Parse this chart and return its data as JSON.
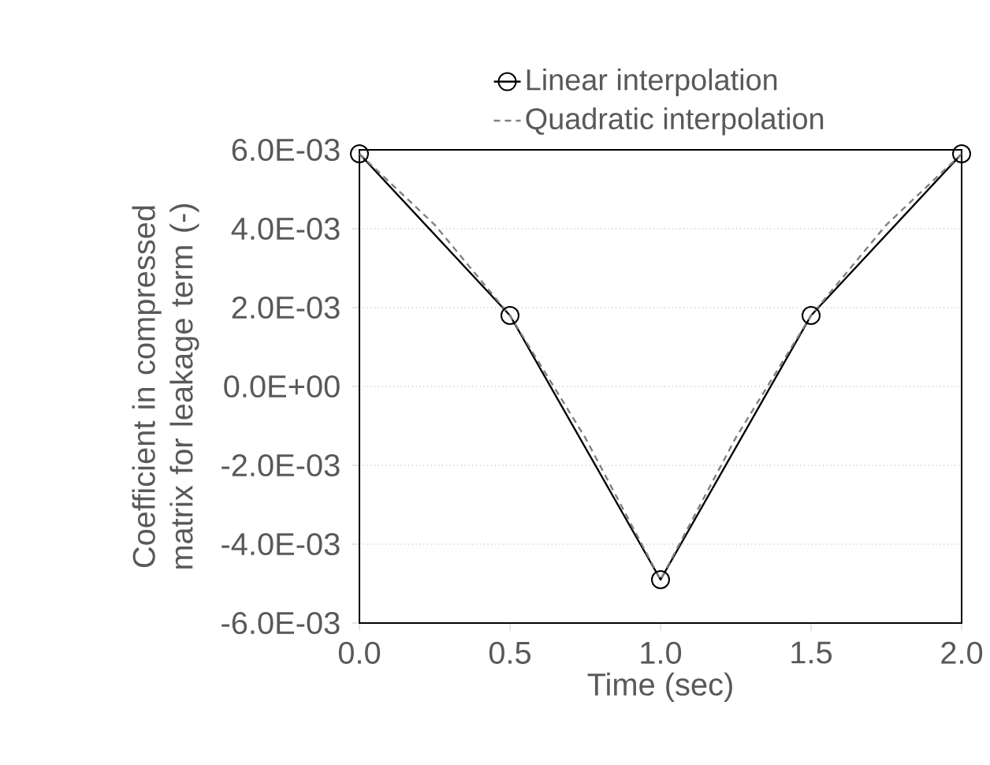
{
  "chart_data": {
    "type": "line",
    "xlabel": "Time (sec)",
    "ylabel": "Coefficient in compressed matrix for leakage term (-)",
    "xlim": [
      0,
      2
    ],
    "ylim": [
      -0.006,
      0.006
    ],
    "xticks": [
      {
        "value": 0,
        "label": "0.0"
      },
      {
        "value": 0.5,
        "label": "0.5"
      },
      {
        "value": 1,
        "label": "1.0"
      },
      {
        "value": 1.5,
        "label": "1.5"
      },
      {
        "value": 2,
        "label": "2.0"
      }
    ],
    "yticks": [
      {
        "value": -0.006,
        "label": "-6.0E-03"
      },
      {
        "value": -0.004,
        "label": "-4.0E-03"
      },
      {
        "value": -0.002,
        "label": "-2.0E-03"
      },
      {
        "value": 0,
        "label": "0.0E+00"
      },
      {
        "value": 0.002,
        "label": "2.0E-03"
      },
      {
        "value": 0.004,
        "label": "4.0E-03"
      },
      {
        "value": 0.006,
        "label": "6.0E-03"
      }
    ],
    "grid": "y",
    "legend": "top",
    "series": [
      {
        "name": "Linear interpolation",
        "color": "#000000",
        "marker": "circle",
        "line_style": "solid",
        "x": [
          0,
          0.5,
          1,
          1.5,
          2
        ],
        "values": [
          0.0059,
          0.0018,
          -0.0049,
          0.0018,
          0.0059
        ]
      },
      {
        "name": "Quadratic interpolation",
        "color": "#808080",
        "marker": "none",
        "line_style": "dashed",
        "x": [
          0,
          0.25,
          0.5,
          0.75,
          1,
          1.25,
          1.5,
          1.75,
          2
        ],
        "values": [
          0.0059,
          0.0041,
          0.0018,
          -0.0013,
          -0.0049,
          -0.0013,
          0.0018,
          0.0041,
          0.0059
        ]
      }
    ]
  }
}
